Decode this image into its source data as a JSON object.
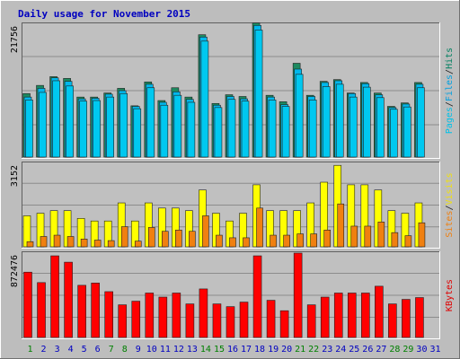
{
  "chart_data": [
    {
      "panel": "top",
      "type": "bar",
      "title": "Daily usage for November 2015",
      "ytick": "21756",
      "ylim": [
        0,
        22800
      ],
      "legend_right": [
        {
          "label": "Pages",
          "color": "#00c0e8"
        },
        {
          "label": "/",
          "color": "#202020"
        },
        {
          "label": "Files",
          "color": "#00a0e0"
        },
        {
          "label": "/",
          "color": "#202020"
        },
        {
          "label": "Hits",
          "color": "#008060"
        }
      ],
      "categories": [
        "1",
        "2",
        "3",
        "4",
        "5",
        "6",
        "7",
        "8",
        "9",
        "10",
        "11",
        "12",
        "13",
        "14",
        "15",
        "16",
        "17",
        "18",
        "19",
        "20",
        "21",
        "22",
        "23",
        "24",
        "25",
        "26",
        "27",
        "28",
        "29",
        "30",
        "31"
      ],
      "weekend_days": [
        "1",
        "7",
        "8",
        "14",
        "15",
        "21",
        "22",
        "28",
        "29"
      ],
      "series": [
        {
          "name": "Hits",
          "color": "#1d8a60",
          "values": [
            10900,
            12300,
            13800,
            13500,
            10300,
            10300,
            11000,
            11800,
            8800,
            12900,
            9700,
            11900,
            10300,
            21000,
            9200,
            10700,
            10400,
            23000,
            10600,
            9500,
            16100,
            10600,
            13000,
            13300,
            11000,
            12800,
            11000,
            8700,
            9300,
            12800,
            0
          ]
        },
        {
          "name": "Files",
          "color": "#00b8ec",
          "values": [
            10300,
            11800,
            13600,
            13000,
            10000,
            10100,
            10800,
            11400,
            8700,
            12500,
            9400,
            11200,
            9900,
            20600,
            8900,
            10400,
            10000,
            22600,
            10300,
            9000,
            15100,
            10400,
            12800,
            13100,
            10900,
            12600,
            10700,
            8500,
            9100,
            12500,
            0
          ]
        },
        {
          "name": "Pages",
          "color": "#00c8f0",
          "values": [
            9800,
            11100,
            13100,
            12200,
            9600,
            9700,
            10300,
            10900,
            8300,
            11900,
            8900,
            10600,
            9400,
            19900,
            8500,
            9900,
            9600,
            21800,
            9800,
            8700,
            14200,
            9800,
            12100,
            12500,
            10300,
            12000,
            10200,
            8200,
            8600,
            11900,
            0
          ]
        }
      ]
    },
    {
      "panel": "middle",
      "type": "bar",
      "ytick": "3152",
      "ylim": [
        0,
        3230
      ],
      "legend_right": [
        {
          "label": "Sites",
          "color": "#f08010"
        },
        {
          "label": "/",
          "color": "#202020"
        },
        {
          "label": "Visits",
          "color": "#f0e010"
        }
      ],
      "series": [
        {
          "name": "Visits",
          "color": "#ffff00",
          "values": [
            1200,
            1300,
            1400,
            1400,
            1100,
            1000,
            1000,
            1700,
            1000,
            1700,
            1500,
            1500,
            1400,
            2200,
            1300,
            1000,
            1300,
            2400,
            1400,
            1400,
            1400,
            1700,
            2500,
            3152,
            2400,
            2400,
            2200,
            1400,
            1300,
            1700,
            0
          ]
        },
        {
          "name": "Sites",
          "color": "#f08010",
          "values": [
            200,
            400,
            450,
            400,
            300,
            260,
            240,
            780,
            220,
            750,
            600,
            650,
            600,
            1200,
            450,
            350,
            350,
            1500,
            450,
            450,
            500,
            500,
            650,
            1660,
            800,
            800,
            960,
            550,
            430,
            930,
            0
          ]
        }
      ]
    },
    {
      "panel": "bottom",
      "type": "bar",
      "ytick": "872476",
      "ylim": [
        0,
        930000
      ],
      "legend_right": [
        {
          "label": "KBytes",
          "color": "#e00000"
        }
      ],
      "series": [
        {
          "name": "KBytes",
          "color": "#ff0000",
          "values": [
            720000,
            605000,
            900000,
            830000,
            575000,
            600000,
            505000,
            360000,
            400000,
            490000,
            445000,
            490000,
            370000,
            535000,
            370000,
            340000,
            390000,
            900000,
            410000,
            295000,
            930000,
            360000,
            445000,
            490000,
            490000,
            490000,
            565000,
            370000,
            420000,
            440000,
            0
          ]
        }
      ]
    }
  ],
  "colors": {
    "background": "#bdbdbd",
    "title_text": "#0000c0",
    "weekday_label": "#0000c0",
    "weekend_label": "#008000",
    "grid": "#8c8c8c"
  }
}
